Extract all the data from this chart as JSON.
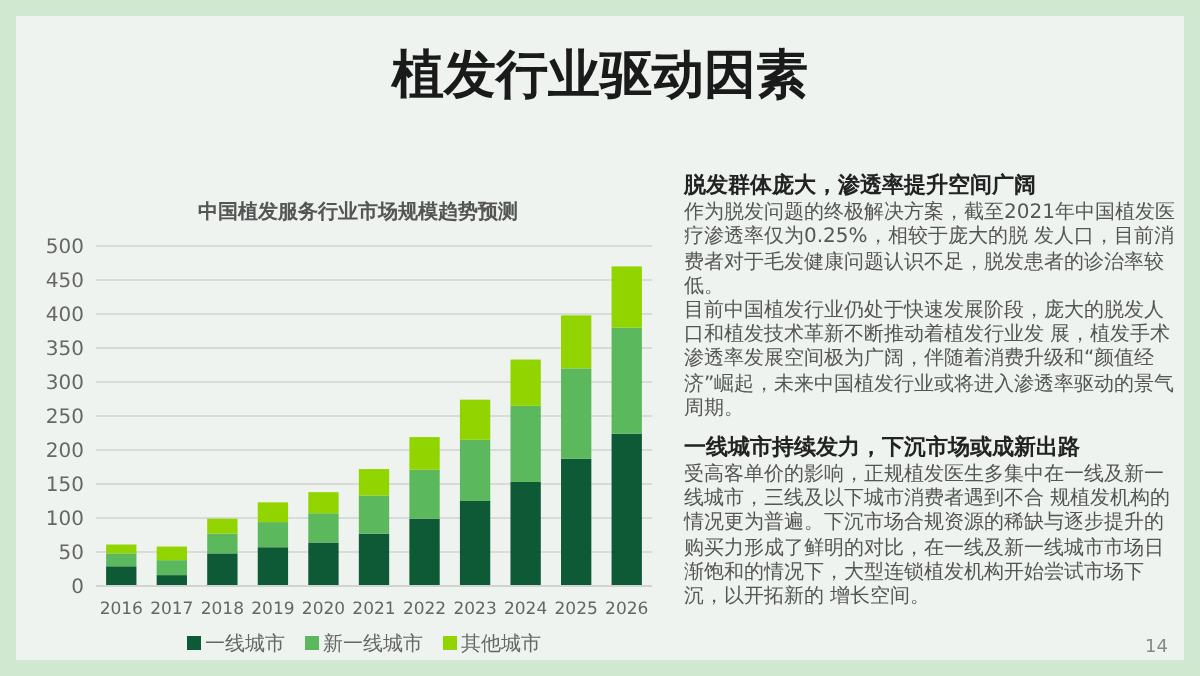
{
  "chart_data": [
    {
      "type": "other",
      "title": "植发行业驱动因素"
    },
    {
      "type": "bar",
      "title": "中国植发服务行业市场规模趋势预测",
      "stacked": true,
      "legend": "bottom",
      "grid": "y",
      "categories": [
        "2016",
        "2017",
        "2018",
        "2019",
        "2020",
        "2021",
        "2022",
        "2023",
        "2024",
        "2025",
        "2026"
      ],
      "ylim": [
        0,
        500
      ],
      "yticks": [
        0,
        50,
        100,
        150,
        200,
        250,
        300,
        350,
        400,
        450,
        500
      ],
      "series": [
        {
          "name": "一线城市",
          "color": "#0f5a36",
          "values": [
            29,
            16,
            48,
            57,
            64,
            77,
            99,
            125,
            153,
            187,
            224
          ]
        },
        {
          "name": "新一线城市",
          "color": "#5cb85c",
          "values": [
            19,
            22,
            29,
            37,
            43,
            56,
            72,
            90,
            112,
            133,
            156
          ]
        },
        {
          "name": "其他城市",
          "color": "#92d400",
          "values": [
            13,
            20,
            22,
            29,
            31,
            39,
            48,
            59,
            68,
            78,
            90
          ]
        }
      ]
    },
    {
      "type": "other",
      "annotations": [
        "脱发群体庞大，渗透率提升空间广阔",
        "作为脱发问题的终极解决方案，截至2021年中国植发医疗渗透率仅为0.25%，相较于庞大的脱 发人口，目前消费者对于毛发健康问题认识不足，脱发患者的诊治率较低。",
        "目前中国植发行业仍处于快速发展阶段，庞大的脱发人口和植发技术革新不断推动着植发行业发 展，植发手术渗透率发展空间极为广阔，伴随着消费升级和“颜值经济”崛起，未来中国植发行业或将进入渗透率驱动的景气周期。",
        "一线城市持续发力，下沉市场或成新出路",
        "受高客单价的影响，正规植发医生多集中在一线及新一线城市，三线及以下城市消费者遇到不合 规植发机构的情况更为普遍。下沉市场合规资源的稀缺与逐步提升的购买力形成了鲜明的对比，在一线及新一线城市市场日渐饱和的情况下，大型连锁植发机构开始尝试市场下沉，以开拓新的 增长空间。",
        "14"
      ]
    }
  ]
}
